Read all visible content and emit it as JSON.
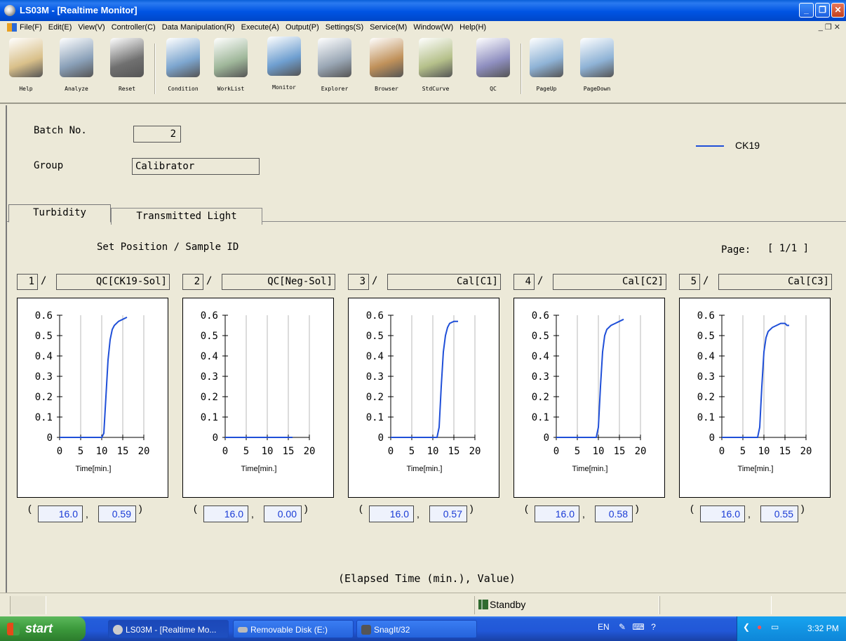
{
  "window": {
    "title": "LS03M - [Realtime Monitor]"
  },
  "menu": [
    "File(F)",
    "Edit(E)",
    "View(V)",
    "Controller(C)",
    "Data Manipulation(R)",
    "Execute(A)",
    "Output(P)",
    "Settings(S)",
    "Service(M)",
    "Window(W)",
    "Help(H)"
  ],
  "toolbar": [
    {
      "label": "Help",
      "icon": "help-doctor-icon",
      "color": "#d9c08a"
    },
    {
      "label": "Analyze",
      "icon": "test-tubes-icon",
      "color": "#8aa0b8"
    },
    {
      "label": "Reset",
      "icon": "speaker-reset-icon",
      "color": "#707070"
    },
    {
      "label": "Condition",
      "icon": "condition-sheet-icon",
      "color": "#7da6cf"
    },
    {
      "label": "WorkList",
      "icon": "worklist-pencil-icon",
      "color": "#9fb79a"
    },
    {
      "label": "Monitor",
      "icon": "monitor-icon",
      "color": "#6f9fd0"
    },
    {
      "label": "Explorer",
      "icon": "magnifier-icon",
      "color": "#9aa7b5"
    },
    {
      "label": "Browser",
      "icon": "browser-chart-icon",
      "color": "#c0915a"
    },
    {
      "label": "StdCurve",
      "icon": "std-curve-icon",
      "color": "#b5c08a"
    },
    {
      "label": "QC",
      "icon": "qc-icon",
      "color": "#8f8fc0"
    },
    {
      "label": "PageUp",
      "icon": "page-up-icon",
      "color": "#8fb3d6"
    },
    {
      "label": "PageDown",
      "icon": "page-down-icon",
      "color": "#8fb3d6"
    }
  ],
  "batch": {
    "label": "Batch No.",
    "value": "2"
  },
  "group": {
    "label": "Group",
    "value": "Calibrator"
  },
  "legend": {
    "label": "CK19",
    "color": "#1f4fd8"
  },
  "tabs": [
    "Turbidity",
    "Transmitted Light"
  ],
  "set_position_label": "Set Position / Sample ID",
  "page": {
    "label": "Page:",
    "value": "[ 1/1 ]"
  },
  "positions": [
    {
      "num": "1",
      "id": "QC[CK19-Sol]",
      "time": "16.0",
      "value": "0.59"
    },
    {
      "num": "2",
      "id": "QC[Neg-Sol]",
      "time": "16.0",
      "value": "0.00"
    },
    {
      "num": "3",
      "id": "Cal[C1]",
      "time": "16.0",
      "value": "0.57"
    },
    {
      "num": "4",
      "id": "Cal[C2]",
      "time": "16.0",
      "value": "0.58"
    },
    {
      "num": "5",
      "id": "Cal[C3]",
      "time": "16.0",
      "value": "0.55"
    }
  ],
  "chart_data": [
    {
      "type": "line",
      "xlabel": "Time[min.]",
      "xlim": [
        0,
        20
      ],
      "ylim": [
        0,
        0.6
      ],
      "xticks": [
        "0",
        "5",
        "10",
        "15",
        "20"
      ],
      "yticks": [
        "0",
        "0.1",
        "0.2",
        "0.3",
        "0.4",
        "0.5",
        "0.6"
      ],
      "series": [
        {
          "x": [
            0,
            10,
            10.5,
            11,
            11.5,
            12,
            12.5,
            13,
            14,
            15,
            16
          ],
          "y": [
            0,
            0,
            0.02,
            0.2,
            0.38,
            0.48,
            0.53,
            0.55,
            0.57,
            0.58,
            0.59
          ]
        }
      ]
    },
    {
      "type": "line",
      "xlabel": "Time[min.]",
      "xlim": [
        0,
        20
      ],
      "ylim": [
        0,
        0.6
      ],
      "xticks": [
        "0",
        "5",
        "10",
        "15",
        "20"
      ],
      "yticks": [
        "0",
        "0.1",
        "0.2",
        "0.3",
        "0.4",
        "0.5",
        "0.6"
      ],
      "series": [
        {
          "x": [
            0,
            4,
            8,
            12,
            16
          ],
          "y": [
            0,
            0,
            0,
            0,
            0
          ]
        }
      ]
    },
    {
      "type": "line",
      "xlabel": "Time[min.]",
      "xlim": [
        0,
        20
      ],
      "ylim": [
        0,
        0.6
      ],
      "xticks": [
        "0",
        "5",
        "10",
        "15",
        "20"
      ],
      "yticks": [
        "0",
        "0.1",
        "0.2",
        "0.3",
        "0.4",
        "0.5",
        "0.6"
      ],
      "series": [
        {
          "x": [
            0,
            11,
            11.5,
            12,
            12.5,
            13,
            13.5,
            14,
            15,
            16
          ],
          "y": [
            0,
            0,
            0.05,
            0.25,
            0.42,
            0.5,
            0.54,
            0.56,
            0.57,
            0.57
          ]
        }
      ]
    },
    {
      "type": "line",
      "xlabel": "Time[min.]",
      "xlim": [
        0,
        20
      ],
      "ylim": [
        0,
        0.6
      ],
      "xticks": [
        "0",
        "5",
        "10",
        "15",
        "20"
      ],
      "yticks": [
        "0",
        "0.1",
        "0.2",
        "0.3",
        "0.4",
        "0.5",
        "0.6"
      ],
      "series": [
        {
          "x": [
            0,
            9.5,
            10,
            10.5,
            11,
            11.5,
            12,
            13,
            14,
            15,
            16
          ],
          "y": [
            0,
            0,
            0.05,
            0.25,
            0.42,
            0.5,
            0.53,
            0.55,
            0.56,
            0.57,
            0.58
          ]
        }
      ]
    },
    {
      "type": "line",
      "xlabel": "Time[min.]",
      "xlim": [
        0,
        20
      ],
      "ylim": [
        0,
        0.6
      ],
      "xticks": [
        "0",
        "5",
        "10",
        "15",
        "20"
      ],
      "yticks": [
        "0",
        "0.1",
        "0.2",
        "0.3",
        "0.4",
        "0.5",
        "0.6"
      ],
      "series": [
        {
          "x": [
            0,
            8.5,
            9,
            9.5,
            10,
            10.5,
            11,
            12,
            13,
            14,
            15,
            15.5,
            16
          ],
          "y": [
            0,
            0,
            0.05,
            0.25,
            0.42,
            0.49,
            0.52,
            0.54,
            0.55,
            0.56,
            0.56,
            0.55,
            0.55
          ]
        }
      ]
    }
  ],
  "readout_caption": "(Elapsed Time (min.), Value)",
  "status": {
    "text": "Standby"
  },
  "taskbar": {
    "start": "start",
    "tasks": [
      "LS03M - [Realtime Mo...",
      "Removable Disk (E:)",
      "SnagIt/32"
    ],
    "lang": "EN",
    "clock": "3:32 PM"
  }
}
